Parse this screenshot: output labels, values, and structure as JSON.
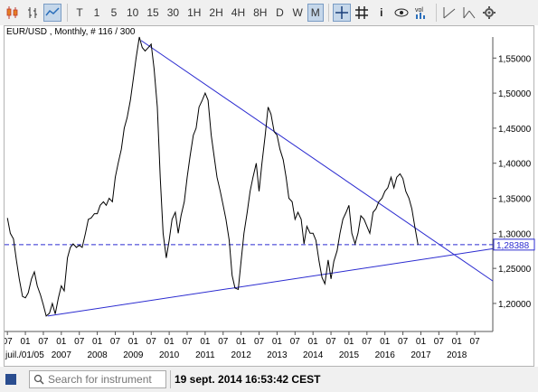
{
  "toolbar": {
    "icons": [
      "candlestick-icon",
      "bar-chart-icon",
      "line-chart-icon"
    ],
    "timeframes": [
      {
        "label": "T",
        "active": false
      },
      {
        "label": "1",
        "active": false
      },
      {
        "label": "5",
        "active": false
      },
      {
        "label": "10",
        "active": false
      },
      {
        "label": "15",
        "active": false
      },
      {
        "label": "30",
        "active": false
      },
      {
        "label": "1H",
        "active": false
      },
      {
        "label": "2H",
        "active": false
      },
      {
        "label": "4H",
        "active": false
      },
      {
        "label": "8H",
        "active": false
      },
      {
        "label": "D",
        "active": false
      },
      {
        "label": "W",
        "active": false
      },
      {
        "label": "M",
        "active": true
      }
    ],
    "tools": [
      "crosshair-icon",
      "grid-icon",
      "info-icon",
      "eye-icon",
      "volume-icon",
      "trendline-icon",
      "trendline-extended-icon",
      "settings-gear-icon"
    ],
    "volume_label": "vol"
  },
  "chart": {
    "header": "EUR/USD , Monthly, # 116 / 300",
    "current_price": "1,28388",
    "colors": {
      "price": "#000000",
      "trendline": "#2b2bd0",
      "current": "#2b2bd0",
      "grid": "#b0b0b0"
    }
  },
  "chart_data": {
    "type": "line",
    "instrument": "EUR/USD",
    "timeframe": "Monthly",
    "ylim": [
      1.16,
      1.58
    ],
    "y_ticks": [
      "1,20000",
      "1,25000",
      "1,30000",
      "1,35000",
      "1,40000",
      "1,45000",
      "1,50000",
      "1,55000"
    ],
    "y_tick_values": [
      1.2,
      1.25,
      1.3,
      1.35,
      1.4,
      1.45,
      1.5,
      1.55
    ],
    "x_ticks": [
      {
        "t": 2005.5,
        "label": "07"
      },
      {
        "t": 2006.0,
        "label": "01"
      },
      {
        "t": 2006.5,
        "label": "07"
      },
      {
        "t": 2007.0,
        "label": "01"
      },
      {
        "t": 2007.5,
        "label": "07"
      },
      {
        "t": 2008.0,
        "label": "01"
      },
      {
        "t": 2008.5,
        "label": "07"
      },
      {
        "t": 2009.0,
        "label": "01"
      },
      {
        "t": 2009.5,
        "label": "07"
      },
      {
        "t": 2010.0,
        "label": "01"
      },
      {
        "t": 2010.5,
        "label": "07"
      },
      {
        "t": 2011.0,
        "label": "01"
      },
      {
        "t": 2011.5,
        "label": "07"
      },
      {
        "t": 2012.0,
        "label": "01"
      },
      {
        "t": 2012.5,
        "label": "07"
      },
      {
        "t": 2013.0,
        "label": "01"
      },
      {
        "t": 2013.5,
        "label": "07"
      },
      {
        "t": 2014.0,
        "label": "01"
      },
      {
        "t": 2014.5,
        "label": "07"
      },
      {
        "t": 2015.0,
        "label": "01"
      },
      {
        "t": 2015.5,
        "label": "07"
      },
      {
        "t": 2016.0,
        "label": "01"
      },
      {
        "t": 2016.5,
        "label": "07"
      },
      {
        "t": 2017.0,
        "label": "01"
      },
      {
        "t": 2017.5,
        "label": "07"
      },
      {
        "t": 2018.0,
        "label": "01"
      },
      {
        "t": 2018.5,
        "label": "07"
      }
    ],
    "x_year_labels": [
      {
        "t": 2005.5,
        "label": "juil./01/05"
      },
      {
        "t": 2007.0,
        "label": "2007"
      },
      {
        "t": 2008.0,
        "label": "2008"
      },
      {
        "t": 2009.0,
        "label": "2009"
      },
      {
        "t": 2010.0,
        "label": "2010"
      },
      {
        "t": 2011.0,
        "label": "2011"
      },
      {
        "t": 2012.0,
        "label": "2012"
      },
      {
        "t": 2013.0,
        "label": "2013"
      },
      {
        "t": 2014.0,
        "label": "2014"
      },
      {
        "t": 2015.0,
        "label": "2015"
      },
      {
        "t": 2016.0,
        "label": "2016"
      },
      {
        "t": 2017.0,
        "label": "2017"
      },
      {
        "t": 2018.0,
        "label": "2018"
      }
    ],
    "series": [
      {
        "points": [
          [
            2005.5,
            1.322
          ],
          [
            2005.58,
            1.3
          ],
          [
            2005.67,
            1.292
          ],
          [
            2005.75,
            1.262
          ],
          [
            2005.83,
            1.235
          ],
          [
            2005.92,
            1.21
          ],
          [
            2006.0,
            1.208
          ],
          [
            2006.08,
            1.215
          ],
          [
            2006.17,
            1.235
          ],
          [
            2006.25,
            1.245
          ],
          [
            2006.33,
            1.225
          ],
          [
            2006.42,
            1.212
          ],
          [
            2006.5,
            1.198
          ],
          [
            2006.58,
            1.182
          ],
          [
            2006.67,
            1.186
          ],
          [
            2006.75,
            1.2
          ],
          [
            2006.83,
            1.185
          ],
          [
            2006.92,
            1.208
          ],
          [
            2007.0,
            1.225
          ],
          [
            2007.08,
            1.218
          ],
          [
            2007.17,
            1.265
          ],
          [
            2007.25,
            1.28
          ],
          [
            2007.33,
            1.285
          ],
          [
            2007.42,
            1.28
          ],
          [
            2007.5,
            1.283
          ],
          [
            2007.58,
            1.28
          ],
          [
            2007.67,
            1.3
          ],
          [
            2007.75,
            1.32
          ],
          [
            2007.83,
            1.322
          ],
          [
            2007.92,
            1.328
          ],
          [
            2008.0,
            1.328
          ],
          [
            2008.08,
            1.34
          ],
          [
            2008.17,
            1.345
          ],
          [
            2008.25,
            1.34
          ],
          [
            2008.33,
            1.35
          ],
          [
            2008.42,
            1.345
          ],
          [
            2008.5,
            1.38
          ],
          [
            2008.58,
            1.4
          ],
          [
            2008.67,
            1.42
          ],
          [
            2008.75,
            1.45
          ],
          [
            2008.83,
            1.465
          ],
          [
            2008.92,
            1.49
          ],
          [
            2009.0,
            1.52
          ],
          [
            2009.08,
            1.55
          ],
          [
            2009.17,
            1.58
          ],
          [
            2009.25,
            1.565
          ],
          [
            2009.33,
            1.56
          ],
          [
            2009.42,
            1.565
          ],
          [
            2009.5,
            1.57
          ],
          [
            2009.58,
            1.535
          ],
          [
            2009.67,
            1.48
          ],
          [
            2009.75,
            1.38
          ],
          [
            2009.83,
            1.3
          ],
          [
            2009.92,
            1.265
          ],
          [
            2010.0,
            1.29
          ],
          [
            2010.08,
            1.32
          ],
          [
            2010.17,
            1.33
          ],
          [
            2010.25,
            1.3
          ],
          [
            2010.33,
            1.325
          ],
          [
            2010.42,
            1.345
          ],
          [
            2010.5,
            1.38
          ],
          [
            2010.58,
            1.41
          ],
          [
            2010.67,
            1.44
          ],
          [
            2010.75,
            1.45
          ],
          [
            2010.83,
            1.48
          ],
          [
            2010.92,
            1.49
          ],
          [
            2011.0,
            1.5
          ],
          [
            2011.08,
            1.49
          ],
          [
            2011.17,
            1.44
          ],
          [
            2011.25,
            1.41
          ],
          [
            2011.33,
            1.38
          ],
          [
            2011.42,
            1.36
          ],
          [
            2011.5,
            1.34
          ],
          [
            2011.58,
            1.32
          ],
          [
            2011.67,
            1.29
          ],
          [
            2011.75,
            1.24
          ],
          [
            2011.83,
            1.222
          ],
          [
            2011.92,
            1.22
          ],
          [
            2012.0,
            1.26
          ],
          [
            2012.08,
            1.3
          ],
          [
            2012.17,
            1.33
          ],
          [
            2012.25,
            1.36
          ],
          [
            2012.33,
            1.38
          ],
          [
            2012.42,
            1.4
          ],
          [
            2012.5,
            1.36
          ],
          [
            2012.58,
            1.4
          ],
          [
            2012.67,
            1.44
          ],
          [
            2012.75,
            1.48
          ],
          [
            2012.83,
            1.47
          ],
          [
            2012.92,
            1.445
          ],
          [
            2013.0,
            1.44
          ],
          [
            2013.08,
            1.42
          ],
          [
            2013.17,
            1.405
          ],
          [
            2013.25,
            1.38
          ],
          [
            2013.33,
            1.35
          ],
          [
            2013.42,
            1.345
          ],
          [
            2013.5,
            1.32
          ],
          [
            2013.58,
            1.33
          ],
          [
            2013.67,
            1.32
          ],
          [
            2013.75,
            1.285
          ],
          [
            2013.83,
            1.31
          ],
          [
            2013.92,
            1.3
          ],
          [
            2014.0,
            1.3
          ],
          [
            2014.08,
            1.29
          ],
          [
            2014.17,
            1.26
          ],
          [
            2014.25,
            1.237
          ],
          [
            2014.33,
            1.228
          ],
          [
            2014.42,
            1.262
          ],
          [
            2014.5,
            1.235
          ],
          [
            2014.58,
            1.26
          ],
          [
            2014.67,
            1.275
          ],
          [
            2014.75,
            1.3
          ],
          [
            2014.83,
            1.32
          ],
          [
            2014.92,
            1.33
          ],
          [
            2015.0,
            1.34
          ],
          [
            2015.08,
            1.3
          ],
          [
            2015.17,
            1.285
          ],
          [
            2015.25,
            1.3
          ],
          [
            2015.33,
            1.325
          ],
          [
            2015.42,
            1.32
          ],
          [
            2015.5,
            1.31
          ],
          [
            2015.58,
            1.3
          ],
          [
            2015.67,
            1.33
          ],
          [
            2015.75,
            1.335
          ],
          [
            2015.83,
            1.345
          ],
          [
            2015.92,
            1.35
          ],
          [
            2016.0,
            1.36
          ],
          [
            2016.08,
            1.365
          ],
          [
            2016.17,
            1.38
          ],
          [
            2016.25,
            1.365
          ],
          [
            2016.33,
            1.38
          ],
          [
            2016.42,
            1.385
          ],
          [
            2016.5,
            1.378
          ],
          [
            2016.58,
            1.36
          ],
          [
            2016.67,
            1.35
          ],
          [
            2016.75,
            1.335
          ],
          [
            2016.83,
            1.31
          ],
          [
            2016.92,
            1.284
          ]
        ]
      }
    ],
    "trendlines": [
      {
        "from": [
          2006.62,
          1.182
        ],
        "to": [
          2019.0,
          1.278
        ]
      },
      {
        "from": [
          2009.22,
          1.575
        ],
        "to": [
          2019.0,
          1.232
        ]
      }
    ],
    "current_line": 1.28388
  },
  "status": {
    "search_placeholder": "Search for instrument",
    "timestamp": "19 sept. 2014 16:53:42 CEST"
  }
}
